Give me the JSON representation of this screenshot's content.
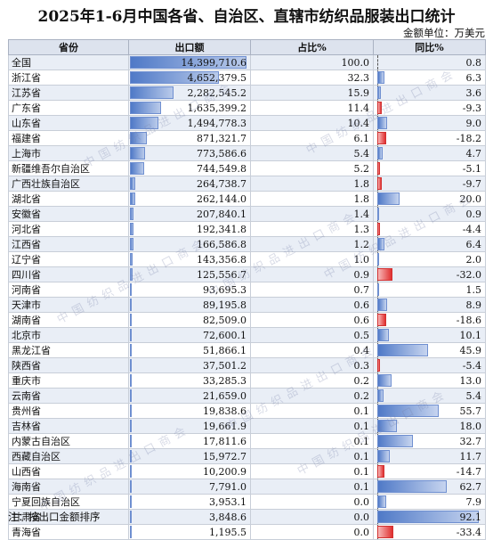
{
  "title": "2025年1-6月中国各省、自治区、直辖市纺织品服装出口统计",
  "unit": "金额单位：万美元",
  "columns": [
    "省份",
    "出口额",
    "占比%",
    "同比%"
  ],
  "rows": [
    {
      "province": "全国",
      "export": "14,399,710.6",
      "share": "100.0",
      "yoy": "0.8",
      "export_v": 14399710.6,
      "yoy_v": 0.8
    },
    {
      "province": "浙江省",
      "export": "4,652,379.5",
      "share": "32.3",
      "yoy": "6.3",
      "export_v": 4652379.5,
      "yoy_v": 6.3
    },
    {
      "province": "江苏省",
      "export": "2,282,545.2",
      "share": "15.9",
      "yoy": "3.6",
      "export_v": 2282545.2,
      "yoy_v": 3.6
    },
    {
      "province": "广东省",
      "export": "1,635,399.2",
      "share": "11.4",
      "yoy": "-9.3",
      "export_v": 1635399.2,
      "yoy_v": -9.3
    },
    {
      "province": "山东省",
      "export": "1,494,778.3",
      "share": "10.4",
      "yoy": "9.0",
      "export_v": 1494778.3,
      "yoy_v": 9.0
    },
    {
      "province": "福建省",
      "export": "871,321.7",
      "share": "6.1",
      "yoy": "-18.2",
      "export_v": 871321.7,
      "yoy_v": -18.2
    },
    {
      "province": "上海市",
      "export": "773,586.6",
      "share": "5.4",
      "yoy": "4.7",
      "export_v": 773586.6,
      "yoy_v": 4.7
    },
    {
      "province": "新疆维吾尔自治区",
      "export": "744,549.8",
      "share": "5.2",
      "yoy": "-5.1",
      "export_v": 744549.8,
      "yoy_v": -5.1
    },
    {
      "province": "广西壮族自治区",
      "export": "264,738.7",
      "share": "1.8",
      "yoy": "-9.7",
      "export_v": 264738.7,
      "yoy_v": -9.7
    },
    {
      "province": "湖北省",
      "export": "262,144.0",
      "share": "1.8",
      "yoy": "20.0",
      "export_v": 262144.0,
      "yoy_v": 20.0
    },
    {
      "province": "安徽省",
      "export": "207,840.1",
      "share": "1.4",
      "yoy": "0.9",
      "export_v": 207840.1,
      "yoy_v": 0.9
    },
    {
      "province": "河北省",
      "export": "192,341.8",
      "share": "1.3",
      "yoy": "-4.4",
      "export_v": 192341.8,
      "yoy_v": -4.4
    },
    {
      "province": "江西省",
      "export": "166,586.8",
      "share": "1.2",
      "yoy": "6.4",
      "export_v": 166586.8,
      "yoy_v": 6.4
    },
    {
      "province": "辽宁省",
      "export": "143,356.8",
      "share": "1.0",
      "yoy": "2.0",
      "export_v": 143356.8,
      "yoy_v": 2.0
    },
    {
      "province": "四川省",
      "export": "125,556.7",
      "share": "0.9",
      "yoy": "-32.0",
      "export_v": 125556.7,
      "yoy_v": -32.0
    },
    {
      "province": "河南省",
      "export": "93,695.3",
      "share": "0.7",
      "yoy": "1.5",
      "export_v": 93695.3,
      "yoy_v": 1.5
    },
    {
      "province": "天津市",
      "export": "89,195.8",
      "share": "0.6",
      "yoy": "8.9",
      "export_v": 89195.8,
      "yoy_v": 8.9
    },
    {
      "province": "湖南省",
      "export": "82,509.0",
      "share": "0.6",
      "yoy": "-18.6",
      "export_v": 82509.0,
      "yoy_v": -18.6
    },
    {
      "province": "北京市",
      "export": "72,600.1",
      "share": "0.5",
      "yoy": "10.1",
      "export_v": 72600.1,
      "yoy_v": 10.1
    },
    {
      "province": "黑龙江省",
      "export": "51,866.1",
      "share": "0.4",
      "yoy": "45.9",
      "export_v": 51866.1,
      "yoy_v": 45.9
    },
    {
      "province": "陕西省",
      "export": "37,501.2",
      "share": "0.3",
      "yoy": "-5.4",
      "export_v": 37501.2,
      "yoy_v": -5.4
    },
    {
      "province": "重庆市",
      "export": "33,285.3",
      "share": "0.2",
      "yoy": "13.0",
      "export_v": 33285.3,
      "yoy_v": 13.0
    },
    {
      "province": "云南省",
      "export": "21,659.0",
      "share": "0.2",
      "yoy": "5.4",
      "export_v": 21659.0,
      "yoy_v": 5.4
    },
    {
      "province": "贵州省",
      "export": "19,838.6",
      "share": "0.1",
      "yoy": "55.7",
      "export_v": 19838.6,
      "yoy_v": 55.7
    },
    {
      "province": "吉林省",
      "export": "19,661.9",
      "share": "0.1",
      "yoy": "18.0",
      "export_v": 19661.9,
      "yoy_v": 18.0
    },
    {
      "province": "内蒙古自治区",
      "export": "17,811.6",
      "share": "0.1",
      "yoy": "32.7",
      "export_v": 17811.6,
      "yoy_v": 32.7
    },
    {
      "province": "西藏自治区",
      "export": "15,972.7",
      "share": "0.1",
      "yoy": "11.7",
      "export_v": 15972.7,
      "yoy_v": 11.7
    },
    {
      "province": "山西省",
      "export": "10,200.9",
      "share": "0.1",
      "yoy": "-14.7",
      "export_v": 10200.9,
      "yoy_v": -14.7
    },
    {
      "province": "海南省",
      "export": "7,791.0",
      "share": "0.1",
      "yoy": "62.7",
      "export_v": 7791.0,
      "yoy_v": 62.7
    },
    {
      "province": "宁夏回族自治区",
      "export": "3,953.1",
      "share": "0.0",
      "yoy": "7.9",
      "export_v": 3953.1,
      "yoy_v": 7.9
    },
    {
      "province": "甘肃省",
      "export": "3,848.6",
      "share": "0.0",
      "yoy": "92.1",
      "export_v": 3848.6,
      "yoy_v": 92.1
    },
    {
      "province": "青海省",
      "export": "1,195.5",
      "share": "0.0",
      "yoy": "-33.4",
      "export_v": 1195.5,
      "yoy_v": -33.4
    }
  ],
  "note": "注：按出口金额排序",
  "watermark": "中国纺织品进出口商会",
  "colors": {
    "positive_bar": "#4f79c7",
    "negative_bar": "#e03030",
    "header_bg": "#dde3ee",
    "stripe_bg": "#e9eef6"
  }
}
